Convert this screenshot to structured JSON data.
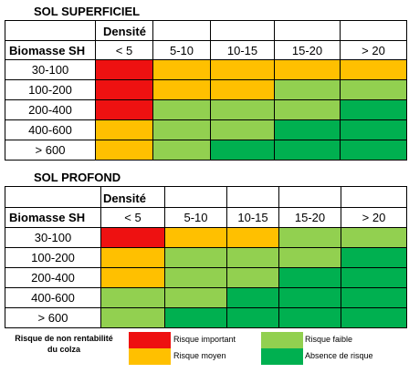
{
  "colors": {
    "red": "#ee1111",
    "orange": "#ffc000",
    "lightgreen": "#92d050",
    "darkgreen": "#00b050"
  },
  "table1": {
    "title": "SOL SUPERFICIEL",
    "density_label": "Densité",
    "row_header": "Biomasse SH",
    "columns": [
      "< 5",
      "5-10",
      "10-15",
      "15-20",
      "> 20"
    ],
    "rows": [
      {
        "label": "30-100",
        "cells": [
          "red",
          "orange",
          "orange",
          "orange",
          "orange"
        ]
      },
      {
        "label": "100-200",
        "cells": [
          "red",
          "orange",
          "orange",
          "lightgreen",
          "lightgreen"
        ]
      },
      {
        "label": "200-400",
        "cells": [
          "red",
          "lightgreen",
          "lightgreen",
          "lightgreen",
          "darkgreen"
        ]
      },
      {
        "label": "400-600",
        "cells": [
          "orange",
          "lightgreen",
          "lightgreen",
          "darkgreen",
          "darkgreen"
        ]
      },
      {
        "label": "> 600",
        "cells": [
          "orange",
          "lightgreen",
          "darkgreen",
          "darkgreen",
          "darkgreen"
        ]
      }
    ]
  },
  "table2": {
    "title": "SOL PROFOND",
    "density_label": "Densité",
    "row_header": "Biomasse SH",
    "columns": [
      "< 5",
      "5-10",
      "10-15",
      "15-20",
      "> 20"
    ],
    "rows": [
      {
        "label": "30-100",
        "cells": [
          "red",
          "orange",
          "orange",
          "lightgreen",
          "lightgreen"
        ]
      },
      {
        "label": "100-200",
        "cells": [
          "orange",
          "lightgreen",
          "lightgreen",
          "lightgreen",
          "darkgreen"
        ]
      },
      {
        "label": "200-400",
        "cells": [
          "orange",
          "lightgreen",
          "lightgreen",
          "darkgreen",
          "darkgreen"
        ]
      },
      {
        "label": "400-600",
        "cells": [
          "lightgreen",
          "lightgreen",
          "darkgreen",
          "darkgreen",
          "darkgreen"
        ]
      },
      {
        "label": "> 600",
        "cells": [
          "lightgreen",
          "darkgreen",
          "darkgreen",
          "darkgreen",
          "darkgreen"
        ]
      }
    ]
  },
  "legend": {
    "title_line1": "Risque de non rentabilité",
    "title_line2": "du colza",
    "items": [
      {
        "color": "red",
        "label": "Risque important"
      },
      {
        "color": "orange",
        "label": "Risque moyen"
      },
      {
        "color": "lightgreen",
        "label": "Risque faible"
      },
      {
        "color": "darkgreen",
        "label": "Absence de risque"
      }
    ]
  }
}
